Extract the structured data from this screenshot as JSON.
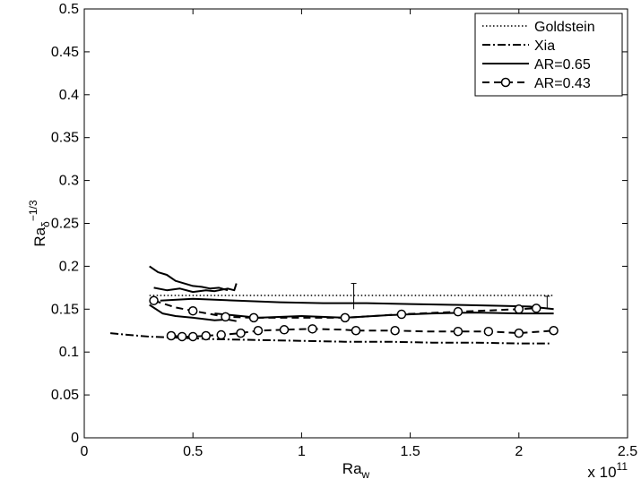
{
  "chart_data": {
    "type": "line",
    "xlabel": "Ra",
    "xlabel_sub": "w",
    "ylabel": "Ra",
    "ylabel_sub": "δ",
    "ylabel_sup": "−1/3",
    "x_multiplier": "x 10",
    "x_multiplier_exp": "11",
    "xlim": [
      0,
      2.5
    ],
    "ylim": [
      0,
      0.5
    ],
    "xticks": [
      "0",
      "0.5",
      "1",
      "1.5",
      "2",
      "2.5"
    ],
    "yticks": [
      "0",
      "0.05",
      "0.1",
      "0.15",
      "0.2",
      "0.25",
      "0.3",
      "0.35",
      "0.4",
      "0.45",
      "0.5"
    ],
    "grid": false,
    "legend_position": "top-right",
    "series": [
      {
        "name": "Goldstein",
        "style": "dotted",
        "segments": [
          [
            [
              0.3,
              0.166
            ],
            [
              2.16,
              0.166
            ]
          ]
        ]
      },
      {
        "name": "Xia",
        "style": "dashdot",
        "segments": [
          [
            [
              0.12,
              0.122
            ],
            [
              0.2,
              0.12
            ],
            [
              0.3,
              0.118
            ],
            [
              0.4,
              0.117
            ],
            [
              0.5,
              0.116
            ],
            [
              0.6,
              0.115
            ],
            [
              0.8,
              0.114
            ],
            [
              1.0,
              0.113
            ],
            [
              1.2,
              0.112
            ],
            [
              1.4,
              0.112
            ],
            [
              1.6,
              0.111
            ],
            [
              1.8,
              0.111
            ],
            [
              2.0,
              0.11
            ],
            [
              2.14,
              0.11
            ]
          ]
        ]
      },
      {
        "name": "AR=0.65",
        "style": "solid",
        "segments": [
          [
            [
              0.3,
              0.2
            ],
            [
              0.34,
              0.193
            ],
            [
              0.38,
              0.19
            ],
            [
              0.42,
              0.183
            ],
            [
              0.46,
              0.18
            ],
            [
              0.5,
              0.177
            ],
            [
              0.54,
              0.176
            ],
            [
              0.58,
              0.174
            ],
            [
              0.62,
              0.175
            ],
            [
              0.66,
              0.172
            ]
          ],
          [
            [
              0.32,
              0.175
            ],
            [
              0.38,
              0.172
            ],
            [
              0.44,
              0.174
            ],
            [
              0.5,
              0.17
            ],
            [
              0.56,
              0.172
            ],
            [
              0.6,
              0.171
            ],
            [
              0.66,
              0.174
            ],
            [
              0.69,
              0.172
            ],
            [
              0.7,
              0.18
            ]
          ],
          [
            [
              0.35,
              0.16
            ],
            [
              0.5,
              0.162
            ],
            [
              0.7,
              0.16
            ],
            [
              0.9,
              0.158
            ],
            [
              1.1,
              0.157
            ],
            [
              1.3,
              0.157
            ],
            [
              1.5,
              0.156
            ],
            [
              1.7,
              0.155
            ],
            [
              1.9,
              0.154
            ],
            [
              2.05,
              0.153
            ],
            [
              2.16,
              0.15
            ]
          ],
          [
            [
              0.3,
              0.155
            ],
            [
              0.36,
              0.145
            ],
            [
              0.42,
              0.142
            ],
            [
              0.5,
              0.14
            ],
            [
              0.6,
              0.137
            ],
            [
              0.66,
              0.138
            ],
            [
              0.7,
              0.136
            ]
          ],
          [
            [
              0.6,
              0.145
            ],
            [
              0.8,
              0.14
            ],
            [
              1.0,
              0.142
            ],
            [
              1.2,
              0.14
            ],
            [
              1.4,
              0.143
            ],
            [
              1.6,
              0.145
            ],
            [
              1.8,
              0.146
            ],
            [
              2.0,
              0.145
            ],
            [
              2.16,
              0.145
            ]
          ]
        ]
      },
      {
        "name": "AR=0.43",
        "style": "dashed-circle",
        "segments": [
          [
            [
              0.32,
              0.16
            ],
            [
              0.42,
              0.152
            ],
            [
              0.5,
              0.148
            ],
            [
              0.65,
              0.141
            ],
            [
              0.78,
              0.14
            ],
            [
              0.95,
              0.14
            ],
            [
              1.2,
              0.14
            ],
            [
              1.46,
              0.144
            ],
            [
              1.72,
              0.147
            ],
            [
              2.0,
              0.15
            ],
            [
              2.08,
              0.151
            ]
          ],
          [
            [
              0.4,
              0.119
            ],
            [
              0.45,
              0.118
            ],
            [
              0.5,
              0.118
            ],
            [
              0.56,
              0.119
            ],
            [
              0.63,
              0.12
            ],
            [
              0.72,
              0.122
            ],
            [
              0.8,
              0.125
            ],
            [
              0.92,
              0.126
            ],
            [
              1.05,
              0.127
            ],
            [
              1.2,
              0.126
            ],
            [
              1.25,
              0.125
            ],
            [
              1.43,
              0.125
            ],
            [
              1.57,
              0.124
            ],
            [
              1.72,
              0.124
            ],
            [
              1.86,
              0.124
            ],
            [
              2.0,
              0.122
            ],
            [
              2.16,
              0.125
            ]
          ]
        ],
        "markers": [
          [
            0.32,
            0.16
          ],
          [
            0.5,
            0.148
          ],
          [
            0.65,
            0.141
          ],
          [
            0.78,
            0.14
          ],
          [
            1.2,
            0.14
          ],
          [
            1.46,
            0.144
          ],
          [
            1.72,
            0.147
          ],
          [
            2.0,
            0.15
          ],
          [
            2.08,
            0.151
          ],
          [
            0.4,
            0.119
          ],
          [
            0.45,
            0.118
          ],
          [
            0.5,
            0.118
          ],
          [
            0.56,
            0.119
          ],
          [
            0.63,
            0.12
          ],
          [
            0.72,
            0.122
          ],
          [
            0.8,
            0.125
          ],
          [
            0.92,
            0.126
          ],
          [
            1.05,
            0.127
          ],
          [
            1.25,
            0.125
          ],
          [
            1.43,
            0.125
          ],
          [
            1.72,
            0.124
          ],
          [
            1.86,
            0.124
          ],
          [
            2.0,
            0.122
          ],
          [
            2.16,
            0.125
          ]
        ]
      }
    ],
    "error_bars": [
      {
        "x": 1.24,
        "ylow": 0.15,
        "yhigh": 0.18
      },
      {
        "x": 2.13,
        "ylow": 0.15,
        "yhigh": 0.165
      }
    ]
  }
}
